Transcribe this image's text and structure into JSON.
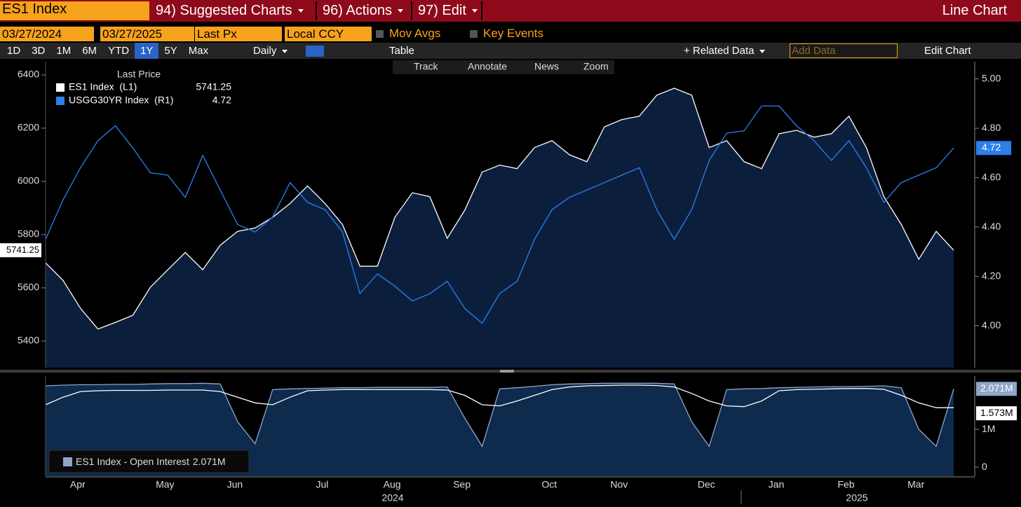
{
  "toolbar": {
    "security": "ES1 Index",
    "menus": [
      "94) Suggested Charts",
      "96) Actions",
      "97) Edit"
    ],
    "chart_kind": "Line Chart",
    "start_date": "03/27/2024",
    "end_date": "03/27/2025",
    "field": "Last Px",
    "currency": "Local CCY",
    "options": [
      "Mov Avgs",
      "Key Events"
    ],
    "ranges": [
      "1D",
      "3D",
      "1M",
      "6M",
      "YTD",
      "1Y",
      "5Y",
      "Max"
    ],
    "active_range": "1Y",
    "frequency": "Daily",
    "table": "Table",
    "related": "+ Related Data",
    "add_data": "Add Data",
    "edit_chart": "Edit Chart",
    "tools": [
      "Track",
      "Annotate",
      "News",
      "Zoom"
    ]
  },
  "chart_data": [
    {
      "type": "line",
      "legend_title": "Last Price",
      "categories": [
        null,
        null,
        "Apr",
        null,
        null,
        null,
        null,
        "May",
        null,
        null,
        null,
        "Jun",
        null,
        null,
        null,
        null,
        "Jul",
        null,
        null,
        null,
        "Aug",
        null,
        null,
        null,
        "Sep",
        null,
        null,
        null,
        null,
        "Oct",
        null,
        null,
        null,
        "Nov",
        null,
        null,
        null,
        null,
        "Dec",
        null,
        null,
        null,
        "Jan",
        null,
        null,
        null,
        "Feb",
        null,
        null,
        null,
        "Mar",
        null,
        null
      ],
      "year_labels": [
        "2024",
        "2025"
      ],
      "ylim": [
        5300,
        6450
      ],
      "yticks": [
        5400,
        5600,
        5800,
        6000,
        6200,
        6400
      ],
      "y2lim": [
        3.83,
        5.07
      ],
      "y2ticks": [
        {
          "value": 4,
          "label": "4.00"
        },
        {
          "value": 4.2,
          "label": "4.20"
        },
        {
          "value": 4.4,
          "label": "4.40"
        },
        {
          "value": 4.6,
          "label": "4.60"
        },
        {
          "value": 4.8,
          "label": "4.80"
        },
        {
          "value": 5,
          "label": "5.00"
        }
      ],
      "series": [
        {
          "name": "ES1 Index  (L1)",
          "color": "#ffffff",
          "fill": "#0b1f3d",
          "values": [
            5694,
            5628,
            5523,
            5445,
            5470,
            5497,
            5602,
            5668,
            5733,
            5668,
            5760,
            5812,
            5825,
            5865,
            5917,
            5983,
            5917,
            5838,
            5681,
            5681,
            5865,
            5957,
            5943,
            5786,
            5891,
            6035,
            6061,
            6048,
            6127,
            6153,
            6100,
            6074,
            6205,
            6232,
            6245,
            6324,
            6350,
            6324,
            6127,
            6153,
            6074,
            6048,
            6179,
            6192,
            6166,
            6179,
            6245,
            6127,
            5943,
            5838,
            5707,
            5812,
            5741.25
          ]
        },
        {
          "name": "USGG30YR Index  (R1)",
          "color": "#2d7fea",
          "axis": "y2",
          "values": [
            4.35,
            4.51,
            4.64,
            4.75,
            4.81,
            4.72,
            4.62,
            4.61,
            4.52,
            4.69,
            4.55,
            4.41,
            4.38,
            4.44,
            4.58,
            4.5,
            4.47,
            4.38,
            4.13,
            4.21,
            4.16,
            4.1,
            4.13,
            4.18,
            4.07,
            4.01,
            4.13,
            4.18,
            4.35,
            4.47,
            4.52,
            4.55,
            4.58,
            4.61,
            4.64,
            4.47,
            4.35,
            4.47,
            4.67,
            4.78,
            4.79,
            4.89,
            4.89,
            4.81,
            4.75,
            4.67,
            4.75,
            4.64,
            4.5,
            4.58,
            4.61,
            4.64,
            4.72
          ]
        }
      ]
    },
    {
      "type": "area",
      "ylim": [
        -240000,
        2410000
      ],
      "yticks": [
        0,
        {
          "value": 1000000,
          "label": "1M"
        }
      ],
      "series": [
        {
          "name": "ES1 Index - Open Interest",
          "color": "#8fa6c8",
          "fill": "#0e2a4c",
          "tag": "2.071M",
          "values": [
            2150000,
            2170000,
            2180000,
            2180000,
            2190000,
            2190000,
            2200000,
            2210000,
            2210000,
            2220000,
            2200000,
            1200000,
            620000,
            2050000,
            2070000,
            2080000,
            2090000,
            2100000,
            2100000,
            2110000,
            2110000,
            2110000,
            2110000,
            2120000,
            1300000,
            550000,
            2070000,
            2100000,
            2140000,
            2180000,
            2200000,
            2210000,
            2220000,
            2220000,
            2220000,
            2220000,
            2200000,
            1200000,
            550000,
            2050000,
            2070000,
            2080000,
            2100000,
            2110000,
            2120000,
            2130000,
            2130000,
            2140000,
            2150000,
            2100000,
            1000000,
            550000,
            2071000
          ]
        },
        {
          "color": "#ffffff",
          "tag": "1.573M",
          "values": [
            1650000,
            1850000,
            2000000,
            2020000,
            2030000,
            2030000,
            2030000,
            2040000,
            2040000,
            2040000,
            2000000,
            1850000,
            1700000,
            1650000,
            1850000,
            2020000,
            2040000,
            2050000,
            2050000,
            2050000,
            2050000,
            2050000,
            2050000,
            2040000,
            1900000,
            1650000,
            1620000,
            1750000,
            1900000,
            2050000,
            2120000,
            2150000,
            2160000,
            2170000,
            2170000,
            2160000,
            2120000,
            1950000,
            1750000,
            1620000,
            1600000,
            1750000,
            2020000,
            2050000,
            2060000,
            2070000,
            2080000,
            2080000,
            2060000,
            1900000,
            1700000,
            1573000,
            1573000
          ]
        }
      ]
    }
  ]
}
